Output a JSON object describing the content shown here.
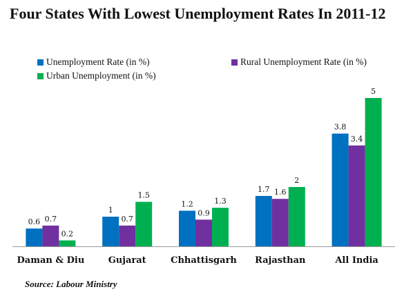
{
  "chart_data": {
    "type": "bar",
    "title": "Four States With Lowest Unemployment Rates In 2011-12",
    "categories": [
      "Daman & Diu",
      "Gujarat",
      "Chhattisgarh",
      "Rajasthan",
      "All India"
    ],
    "series": [
      {
        "name": "Unemployment Rate (in %)",
        "values": [
          0.6,
          1,
          1.2,
          1.7,
          3.8
        ],
        "color": "#0070c0"
      },
      {
        "name": "Rural Unemployment Rate (in %)",
        "values": [
          0.7,
          0.7,
          0.9,
          1.6,
          3.4
        ],
        "color": "#7030a0"
      },
      {
        "name": "Urban Unemployment (in %)",
        "values": [
          0.2,
          1.5,
          1.3,
          2,
          5
        ],
        "color": "#00b050"
      }
    ],
    "value_labels": [
      [
        "0.6",
        "1",
        "1.2",
        "1.7",
        "3.8"
      ],
      [
        "0.7",
        "0.7",
        "0.9",
        "1.6",
        "3.4"
      ],
      [
        "0.2",
        "1.5",
        "1.3",
        "2",
        "5"
      ]
    ],
    "ylim": [
      0,
      6
    ],
    "grid": false,
    "legend": "top"
  },
  "source": "Source: Labour Ministry"
}
